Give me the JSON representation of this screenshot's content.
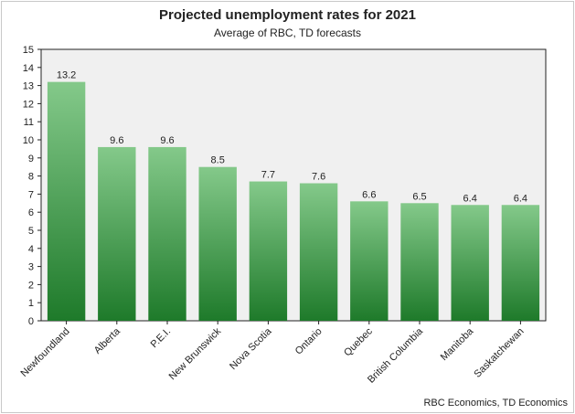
{
  "chart_data": {
    "type": "bar",
    "title": "Projected unemployment rates for 2021",
    "subtitle": "Average of RBC, TD forecasts",
    "categories": [
      "Newfoundland",
      "Alberta",
      "P.E.I.",
      "New Brunswick",
      "Nova Scotia",
      "Ontario",
      "Quebec",
      "British Columbia",
      "Manitoba",
      "Saskatchewan"
    ],
    "values": [
      13.2,
      9.6,
      9.6,
      8.5,
      7.7,
      7.6,
      6.6,
      6.5,
      6.4,
      6.4
    ],
    "data_labels": [
      "13.2",
      "9.6",
      "9.6",
      "8.5",
      "7.7",
      "7.6",
      "6.6",
      "6.5",
      "6.4",
      "6.4"
    ],
    "ylim": [
      0,
      15
    ],
    "yticks": [
      0,
      1,
      2,
      3,
      4,
      5,
      6,
      7,
      8,
      9,
      10,
      11,
      12,
      13,
      14,
      15
    ],
    "xlabel": "",
    "ylabel": "",
    "grid": false,
    "legend": "none",
    "source": "RBC Economics, TD Economics",
    "colors": {
      "bar_top": "#84c98a",
      "bar_bottom": "#1e7a2a",
      "plot_bg": "#f0f0f0"
    }
  }
}
